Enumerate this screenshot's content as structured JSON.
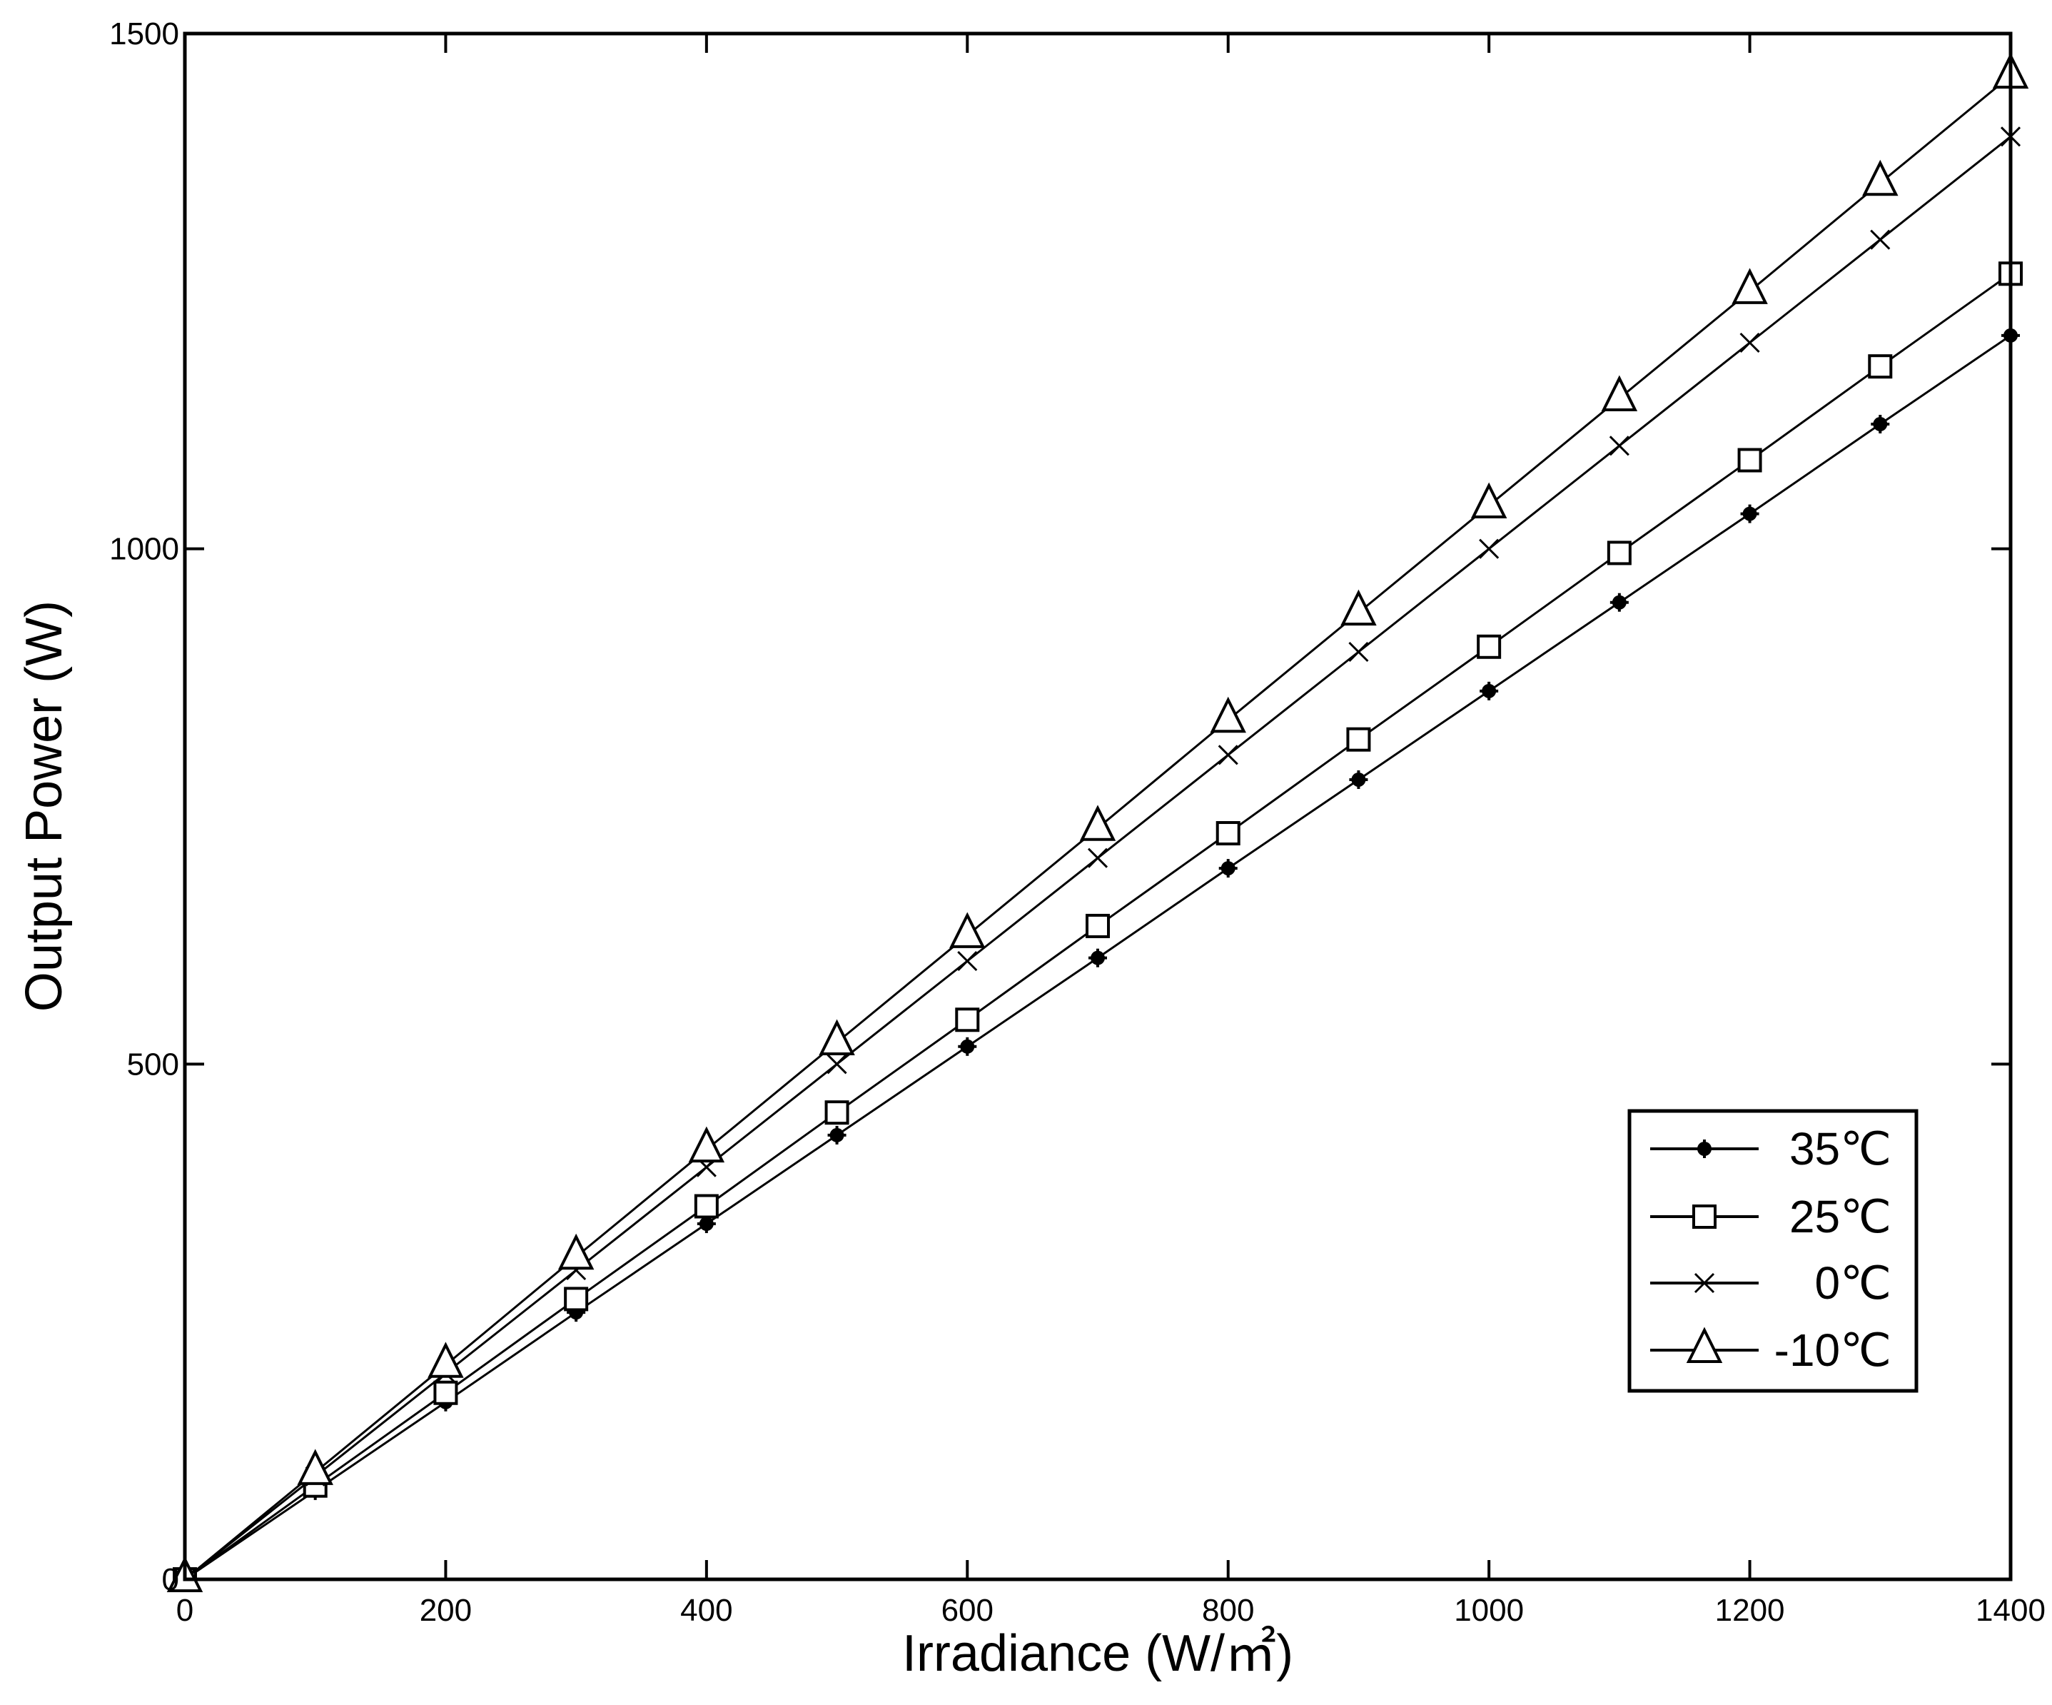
{
  "chart_data": {
    "type": "line",
    "title": "",
    "xlabel": "Irradiance (W/㎡)",
    "ylabel": "Output Power (W)",
    "xlim": [
      0,
      1400
    ],
    "ylim": [
      0,
      1500
    ],
    "xticks": [
      0,
      200,
      400,
      600,
      800,
      1000,
      1200,
      1400
    ],
    "yticks": [
      0,
      500,
      1000,
      1500
    ],
    "grid": false,
    "legend_position": "lower right",
    "x": [
      0,
      100,
      200,
      300,
      400,
      500,
      600,
      700,
      800,
      900,
      1000,
      1100,
      1200,
      1300,
      1400
    ],
    "series": [
      {
        "name": "35℃",
        "marker": "star-filled",
        "values": [
          0,
          86,
          172,
          259,
          345,
          431,
          517,
          603,
          690,
          776,
          862,
          948,
          1034,
          1121,
          1207
        ]
      },
      {
        "name": "25℃",
        "marker": "square-open",
        "values": [
          0,
          91,
          181,
          272,
          362,
          453,
          543,
          634,
          724,
          815,
          905,
          996,
          1086,
          1177,
          1267
        ]
      },
      {
        "name": "0℃",
        "marker": "x",
        "values": [
          0,
          100,
          200,
          300,
          400,
          500,
          600,
          700,
          800,
          900,
          1000,
          1100,
          1200,
          1300,
          1400
        ]
      },
      {
        "name": "-10℃",
        "marker": "triangle-open",
        "values": [
          0,
          104,
          208,
          313,
          417,
          521,
          625,
          729,
          834,
          938,
          1042,
          1146,
          1250,
          1355,
          1459
        ]
      }
    ]
  },
  "legend": {
    "items": [
      {
        "label": "35℃",
        "display": "35℃"
      },
      {
        "label": "25℃",
        "display": "25℃"
      },
      {
        "label": "0℃",
        "display": " 0℃"
      },
      {
        "label": "-10℃",
        "display": "-10℃"
      }
    ]
  },
  "colors": {
    "line": "#000000",
    "background": "#ffffff"
  }
}
